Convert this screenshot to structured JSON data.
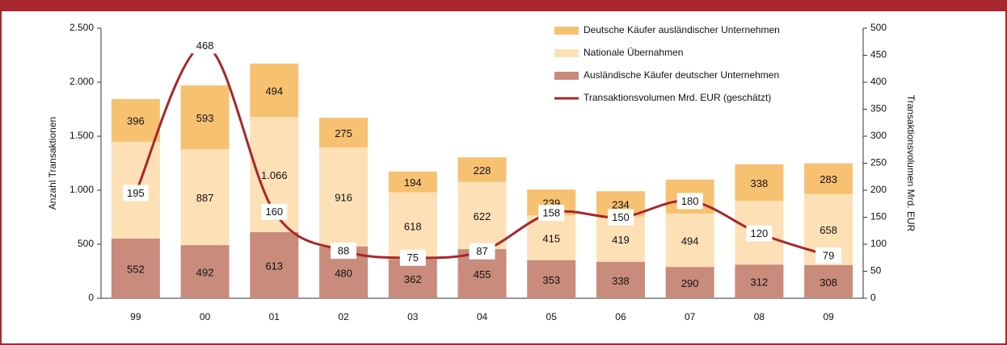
{
  "chart_data": {
    "type": "bar",
    "categories": [
      "99",
      "00",
      "01",
      "02",
      "03",
      "04",
      "05",
      "06",
      "07",
      "08",
      "09"
    ],
    "series": [
      {
        "name": "Deutsche Käufer ausländischer Unternehmen",
        "color": "#f7c172",
        "values": [
          396,
          593,
          494,
          275,
          194,
          228,
          239,
          234,
          315,
          338,
          283
        ]
      },
      {
        "name": "Nationale Übernahmen",
        "color": "#fde0b6",
        "values": [
          897,
          887,
          1066,
          916,
          618,
          622,
          415,
          419,
          494,
          589,
          658
        ],
        "value_labels": [
          "897",
          "887",
          "1.066",
          "916",
          "618",
          "622",
          "415",
          "419",
          "494",
          "589",
          "658"
        ]
      },
      {
        "name": "Ausländische Käufer deutscher Unternehmen",
        "color": "#c98b7b",
        "values": [
          552,
          492,
          613,
          480,
          362,
          455,
          353,
          338,
          290,
          312,
          308
        ]
      },
      {
        "name": "Transaktionsvolumen Mrd. EUR  (geschätzt)",
        "color": "#a8262c",
        "type": "line",
        "axis": "y2",
        "values": [
          195,
          468,
          160,
          88,
          75,
          87,
          158,
          150,
          180,
          120,
          79
        ]
      }
    ],
    "ylabel": "Anzahl Transaktionen",
    "y2label": "Transaktionsvolumen Mrd. EUR",
    "ylim": [
      0,
      2500
    ],
    "yticks": [
      0,
      500,
      {
        "value": 1000,
        "label": "1.000"
      },
      {
        "value": 1500,
        "label": "1.500"
      },
      {
        "value": 2000,
        "label": "2.000"
      },
      {
        "value": 2500,
        "label": "2.500"
      }
    ],
    "y2lim": [
      0,
      500
    ],
    "y2ticks": [
      0,
      50,
      100,
      150,
      200,
      250,
      300,
      350,
      400,
      450,
      500
    ],
    "stacked": true,
    "legend": "upper right"
  }
}
